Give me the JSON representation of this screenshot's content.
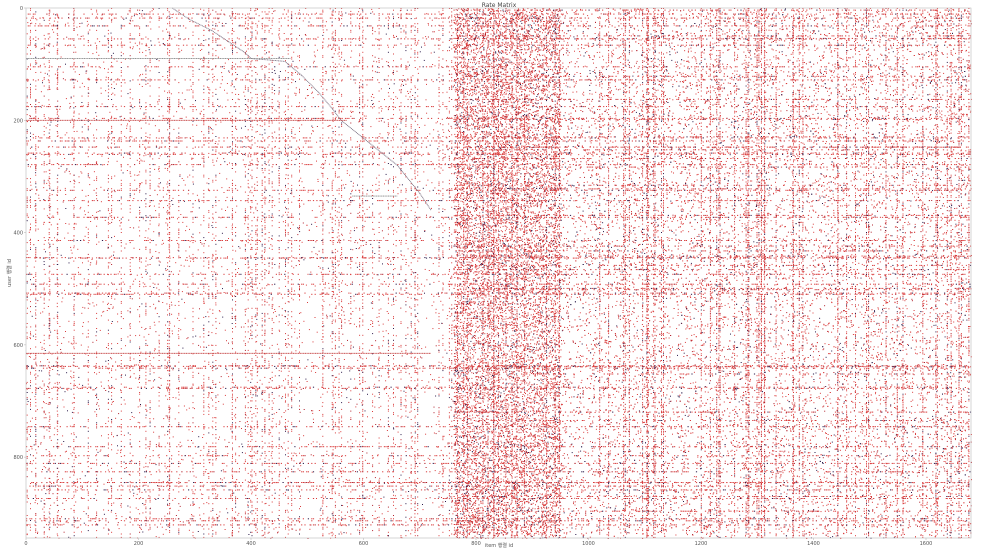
{
  "chart_data": {
    "type": "heatmap",
    "title": "Rate Matrix",
    "xlabel": "item 행렬 id",
    "ylabel": "user 행렬 id",
    "xlim": [
      0,
      1680
    ],
    "ylim": [
      0,
      944
    ],
    "y_inverted": true,
    "grid": false,
    "legend": "none",
    "x_ticks": [
      0,
      200,
      400,
      600,
      800,
      1000,
      1200,
      1400,
      1600
    ],
    "y_ticks": [
      0,
      200,
      400,
      600,
      800
    ],
    "colors": {
      "background": "#ffffff",
      "rating_low": "#d93a3a",
      "rating_mid": "#b01f2a",
      "rating_high": "#2a1a4a",
      "axis": "#bbbbbb",
      "text": "#555555"
    },
    "dense_item_range": [
      760,
      950
    ],
    "staircase_points": [
      [
        260,
        0
      ],
      [
        290,
        20
      ],
      [
        330,
        40
      ],
      [
        360,
        60
      ],
      [
        390,
        80
      ],
      [
        400,
        90
      ],
      [
        460,
        95
      ],
      [
        490,
        120
      ],
      [
        520,
        150
      ],
      [
        545,
        180
      ],
      [
        560,
        200
      ],
      [
        610,
        240
      ],
      [
        660,
        280
      ],
      [
        700,
        330
      ],
      [
        720,
        360
      ]
    ],
    "horizontal_bands": [
      {
        "user": 90,
        "x_start": 0,
        "x_end": 470,
        "color": "#888888"
      },
      {
        "user": 200,
        "x_start": 0,
        "x_end": 570,
        "color": "#c23a3a"
      },
      {
        "user": 335,
        "x_start": 580,
        "x_end": 660,
        "color": "#888888"
      },
      {
        "user": 615,
        "x_start": 0,
        "x_end": 720,
        "color": "#c23a3a"
      }
    ]
  }
}
